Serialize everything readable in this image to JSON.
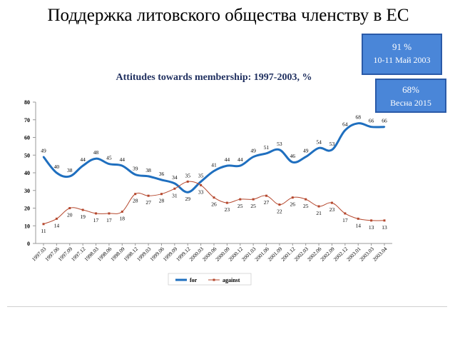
{
  "slide": {
    "title": "Поддержка литовского общества членству в ЕС"
  },
  "callouts": [
    {
      "line1": "91 %",
      "line2": "10-11 Май 2003"
    },
    {
      "line1": "68%",
      "line2": "Весна 2015"
    }
  ],
  "colors": {
    "for": "#1f6fbf",
    "against": "#b5482e",
    "callout_bg": "#4a86d8",
    "axis": "#999999"
  },
  "chart_data": {
    "type": "line",
    "title": "Attitudes towards membership: 1997-2003, %",
    "xlabel": "",
    "ylabel": "",
    "ylim": [
      0,
      80
    ],
    "yticks": [
      0,
      10,
      20,
      30,
      40,
      50,
      60,
      70,
      80
    ],
    "grid": false,
    "legend_position": "bottom",
    "categories": [
      "1997.03",
      "1997.06",
      "1997.09",
      "1997.12",
      "1998.03",
      "1998.06",
      "1998.09",
      "1998.12",
      "1999.03",
      "1999.06",
      "1999.09",
      "1999.12",
      "2000.03",
      "2000.06",
      "2000.09",
      "2000.12",
      "2001.03",
      "2001.06",
      "2001.09",
      "2001.12",
      "2002.03",
      "2002.06",
      "2002.09",
      "2002.12",
      "2003.01",
      "2003.03",
      "2003.04"
    ],
    "series": [
      {
        "name": "for",
        "values": [
          49,
          40,
          38,
          44,
          48,
          45,
          44,
          39,
          38,
          36,
          34,
          29,
          35,
          41,
          44,
          44,
          49,
          51,
          53,
          46,
          49,
          54,
          53,
          64,
          68,
          66,
          66
        ],
        "labels": [
          "49",
          "40",
          "38",
          "44",
          "48",
          "45",
          "44",
          "39",
          "38",
          "36",
          "34",
          "29",
          "35",
          "41",
          "44",
          "44",
          "49",
          "51",
          "53",
          "46",
          "49",
          "54",
          "53",
          "64",
          "68",
          "66",
          "66"
        ]
      },
      {
        "name": "against",
        "values": [
          11,
          14,
          20,
          19,
          17,
          17,
          18,
          28,
          27,
          28,
          31,
          35,
          33,
          26,
          23,
          25,
          25,
          27,
          22,
          26,
          25,
          21,
          23,
          17,
          14,
          13,
          13
        ],
        "labels": [
          "11",
          "14",
          "20",
          "19",
          "17",
          "17",
          "18",
          "28",
          "27",
          "28",
          "31",
          "35",
          "33",
          "26",
          "23",
          "25",
          "25",
          "27",
          "22",
          "26",
          "25",
          "21",
          "23",
          "17",
          "14",
          "13",
          "13"
        ]
      }
    ]
  }
}
